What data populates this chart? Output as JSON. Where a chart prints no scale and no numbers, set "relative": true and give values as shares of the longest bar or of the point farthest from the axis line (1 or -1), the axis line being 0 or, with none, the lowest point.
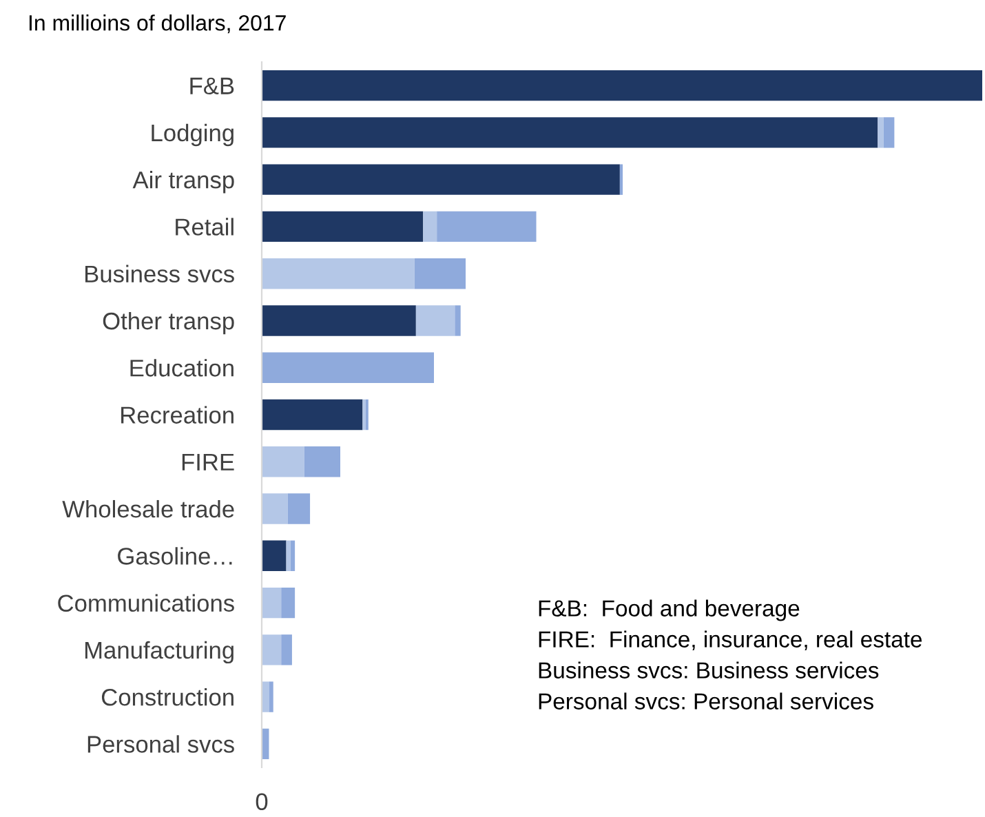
{
  "chart_data": {
    "type": "bar",
    "orientation": "horizontal",
    "stacked": true,
    "relative": true,
    "title": "In millioins of dollars, 2017",
    "categories": [
      "F&B",
      "Lodging",
      "Air transp",
      "Retail",
      "Business svcs",
      "Other transp",
      "Education",
      "Recreation",
      "FIRE",
      "Wholesale trade",
      "Gasoline…",
      "Communications",
      "Manufacturing",
      "Construction",
      "Personal svcs"
    ],
    "series": [
      {
        "color": "#1f3864",
        "values": [
          1.0,
          0.855,
          0.497,
          0.224,
          0,
          0.214,
          0,
          0.14,
          0,
          0,
          0.034,
          0,
          0,
          0,
          0
        ]
      },
      {
        "color": "#b4c7e7",
        "values": [
          0,
          0.008,
          null,
          0.019,
          0.212,
          0.054,
          0,
          0.004,
          0.059,
          0.036,
          0.006,
          0.027,
          0.027,
          0.01,
          null
        ]
      },
      {
        "color": "#8faadc",
        "values": [
          0,
          0.015,
          0.004,
          0.138,
          0.071,
          0.008,
          0.239,
          0.004,
          0.05,
          0.031,
          0.006,
          0.019,
          0.015,
          0.006,
          0.01
        ]
      }
    ],
    "annotations": [
      "0",
      "F&B:  Food and beverage",
      "FIRE:  Finance, insurance, real estate",
      "Business svcs: Business services",
      "Personal svcs: Personal services"
    ],
    "grid": false,
    "legend": false
  }
}
